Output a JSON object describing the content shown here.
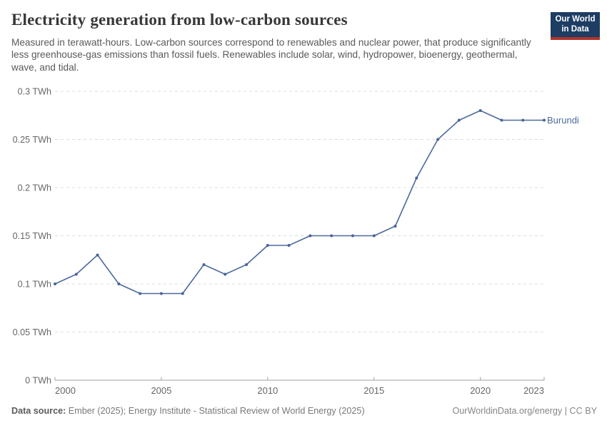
{
  "header": {
    "title": "Electricity generation from low-carbon sources",
    "subtitle": "Measured in terawatt-hours. Low-carbon sources correspond to renewables and nuclear power, that produce significantly less greenhouse-gas emissions than fossil fuels. Renewables include solar, wind, hydropower, bioenergy, geothermal, wave, and tidal.",
    "logo": {
      "line1": "Our World",
      "line2": "in Data"
    }
  },
  "chart_data": {
    "type": "line",
    "title": "Electricity generation from low-carbon sources",
    "xlabel": "",
    "ylabel": "TWh",
    "unit": "TWh",
    "xlim": [
      2000,
      2023
    ],
    "ylim": [
      0,
      0.3
    ],
    "grid": "dashed horizontal",
    "legend_position": "end-of-line label",
    "x": [
      2000,
      2001,
      2002,
      2003,
      2004,
      2005,
      2006,
      2007,
      2008,
      2009,
      2010,
      2011,
      2012,
      2013,
      2014,
      2015,
      2016,
      2017,
      2018,
      2019,
      2020,
      2021,
      2022,
      2023
    ],
    "series": [
      {
        "name": "Burundi",
        "values": [
          0.1,
          0.11,
          0.13,
          0.1,
          0.09,
          0.09,
          0.09,
          0.12,
          0.11,
          0.12,
          0.14,
          0.14,
          0.15,
          0.15,
          0.15,
          0.15,
          0.16,
          0.21,
          0.25,
          0.27,
          0.28,
          0.27,
          0.27,
          0.27
        ]
      }
    ],
    "yticks": [
      0,
      0.05,
      0.1,
      0.15,
      0.2,
      0.25,
      0.3
    ],
    "ytick_labels": [
      "0 TWh",
      "0.05 TWh",
      "0.1 TWh",
      "0.15 TWh",
      "0.2 TWh",
      "0.25 TWh",
      "0.3 TWh"
    ],
    "xticks": [
      2000,
      2005,
      2010,
      2015,
      2020,
      2023
    ],
    "xtick_labels": [
      "2000",
      "2005",
      "2010",
      "2015",
      "2020",
      "2023"
    ]
  },
  "colors": {
    "line": "#4C6A9C",
    "marker": "#46639b",
    "entity_label": "#4C6A9C",
    "grid": "#dcdcdc",
    "axis": "#a0a0a0",
    "tick_label": "#666666",
    "title_text": "#383838",
    "subtitle_text": "#595959",
    "logo_bg": "#1d3d63",
    "logo_red": "#b0342c"
  },
  "footer": {
    "source_label": "Data source:",
    "source_text": "Ember (2025); Energy Institute - Statistical Review of World Energy (2025)",
    "rights": "OurWorldinData.org/energy | CC BY"
  }
}
